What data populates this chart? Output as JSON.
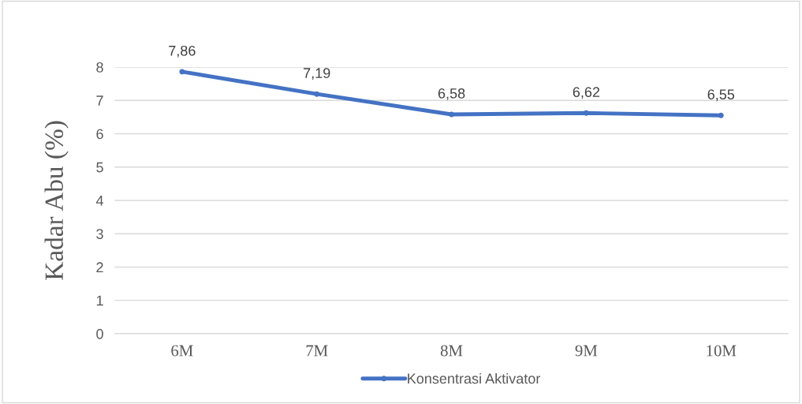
{
  "chart_data": {
    "type": "line",
    "ylabel": "Kadar Abu (%)",
    "categories": [
      "6M",
      "7M",
      "8M",
      "9M",
      "10M"
    ],
    "series": [
      {
        "name": "Konsentrasi Aktivator",
        "color": "#4472c4",
        "values": [
          7.86,
          7.19,
          6.58,
          6.62,
          6.55
        ],
        "value_labels": [
          "7,86",
          "7,19",
          "6,58",
          "6,62",
          "6,55"
        ]
      }
    ],
    "ylim": [
      0,
      8
    ],
    "yticks": [
      0,
      1,
      2,
      3,
      4,
      5,
      6,
      7,
      8
    ],
    "grid": "y",
    "legend": "bottom",
    "marker": "circle",
    "line_style": "solid"
  }
}
